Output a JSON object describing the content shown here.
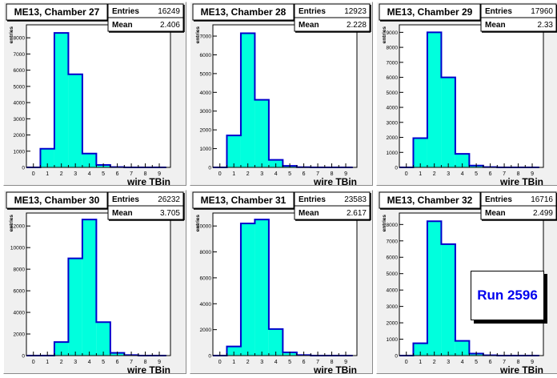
{
  "run_label": "Run 2596",
  "chart_data": [
    {
      "type": "bar",
      "title": "ME13, Chamber 27",
      "stats": {
        "entries_label": "Entries",
        "entries": "16249",
        "mean_label": "Mean",
        "mean": "2.406"
      },
      "xlabel": "wire TBin",
      "ylabel": "entries",
      "categories": [
        0,
        1,
        2,
        3,
        4,
        5,
        6,
        7,
        8,
        9
      ],
      "values": [
        0,
        1150,
        8300,
        5750,
        850,
        150,
        20,
        0,
        0,
        0
      ],
      "ylim": [
        0,
        8800
      ],
      "yticks": [
        0,
        1000,
        2000,
        3000,
        4000,
        5000,
        6000,
        7000,
        8000
      ],
      "fill": "#00ffdd",
      "line": "#0000cc"
    },
    {
      "type": "bar",
      "title": "ME13, Chamber 28",
      "stats": {
        "entries_label": "Entries",
        "entries": "12923",
        "mean_label": "Mean",
        "mean": "2.228"
      },
      "xlabel": "wire TBin",
      "ylabel": "entries",
      "categories": [
        0,
        1,
        2,
        3,
        4,
        5,
        6,
        7,
        8,
        9
      ],
      "values": [
        0,
        1700,
        7150,
        3600,
        400,
        80,
        10,
        0,
        0,
        0
      ],
      "ylim": [
        0,
        7600
      ],
      "yticks": [
        0,
        1000,
        2000,
        3000,
        4000,
        5000,
        6000,
        7000
      ],
      "fill": "#00ffdd",
      "line": "#0000cc"
    },
    {
      "type": "bar",
      "title": "ME13, Chamber 29",
      "stats": {
        "entries_label": "Entries",
        "entries": "17960",
        "mean_label": "Mean",
        "mean": "2.33"
      },
      "xlabel": "wire TBin",
      "ylabel": "entries",
      "categories": [
        0,
        1,
        2,
        3,
        4,
        5,
        6,
        7,
        8,
        9
      ],
      "values": [
        0,
        1950,
        9000,
        6000,
        900,
        120,
        20,
        0,
        0,
        0
      ],
      "ylim": [
        0,
        9500
      ],
      "yticks": [
        0,
        1000,
        2000,
        3000,
        4000,
        5000,
        6000,
        7000,
        8000,
        9000
      ],
      "fill": "#00ffdd",
      "line": "#0000cc"
    },
    {
      "type": "bar",
      "title": "ME13, Chamber 30",
      "stats": {
        "entries_label": "Entries",
        "entries": "26232",
        "mean_label": "Mean",
        "mean": "3.705"
      },
      "xlabel": "wire TBin",
      "ylabel": "entries",
      "categories": [
        0,
        1,
        2,
        3,
        4,
        5,
        6,
        7,
        8,
        9
      ],
      "values": [
        0,
        0,
        1250,
        9000,
        12600,
        3100,
        250,
        50,
        0,
        0
      ],
      "ylim": [
        0,
        13200
      ],
      "yticks": [
        0,
        2000,
        4000,
        6000,
        8000,
        10000,
        12000
      ],
      "fill": "#00ffdd",
      "line": "#0000cc"
    },
    {
      "type": "bar",
      "title": "ME13, Chamber 31",
      "stats": {
        "entries_label": "Entries",
        "entries": "23583",
        "mean_label": "Mean",
        "mean": "2.617"
      },
      "xlabel": "wire TBin",
      "ylabel": "entries",
      "categories": [
        0,
        1,
        2,
        3,
        4,
        5,
        6,
        7,
        8,
        9
      ],
      "values": [
        0,
        700,
        10200,
        10500,
        2050,
        250,
        40,
        0,
        0,
        0
      ],
      "ylim": [
        0,
        11000
      ],
      "yticks": [
        0,
        2000,
        4000,
        6000,
        8000,
        10000
      ],
      "fill": "#00ffdd",
      "line": "#0000cc"
    },
    {
      "type": "bar",
      "title": "ME13, Chamber 32",
      "stats": {
        "entries_label": "Entries",
        "entries": "16716",
        "mean_label": "Mean",
        "mean": "2.499"
      },
      "xlabel": "wire TBin",
      "ylabel": "entries",
      "categories": [
        0,
        1,
        2,
        3,
        4,
        5,
        6,
        7,
        8,
        9
      ],
      "values": [
        0,
        750,
        8200,
        6800,
        900,
        120,
        20,
        0,
        0,
        0
      ],
      "ylim": [
        0,
        8700
      ],
      "yticks": [
        0,
        1000,
        2000,
        3000,
        4000,
        5000,
        6000,
        7000,
        8000
      ],
      "fill": "#00ffdd",
      "line": "#0000cc"
    }
  ]
}
